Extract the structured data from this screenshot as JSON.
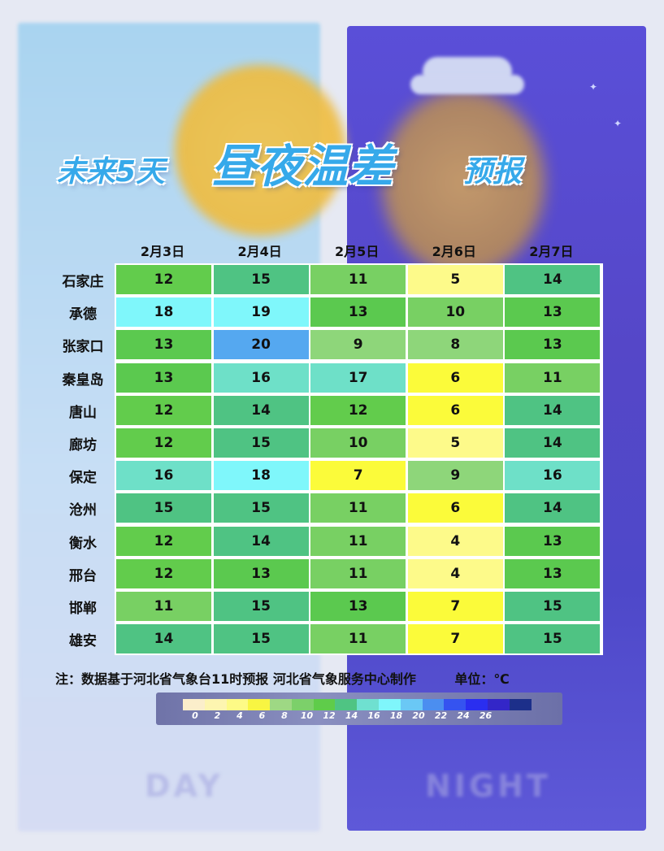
{
  "title": {
    "part1": "未来5天",
    "part2": "昼夜温差",
    "part3": "预报"
  },
  "watermarks": {
    "day": "DAY",
    "night": "NIGHT"
  },
  "note": "注：数据基于河北省气象台11时预报  河北省气象服务中心制作",
  "unit_text": "单位：℃",
  "chart_data": {
    "type": "heatmap",
    "columns": [
      "2月3日",
      "2月4日",
      "2月5日",
      "2月6日",
      "2月7日"
    ],
    "rows": [
      "石家庄",
      "承德",
      "张家口",
      "秦皇岛",
      "唐山",
      "廊坊",
      "保定",
      "沧州",
      "衡水",
      "邢台",
      "邯郸",
      "雄安"
    ],
    "values": [
      [
        12,
        15,
        11,
        5,
        14
      ],
      [
        18,
        19,
        13,
        10,
        13
      ],
      [
        13,
        20,
        9,
        8,
        13
      ],
      [
        13,
        16,
        17,
        6,
        11
      ],
      [
        12,
        14,
        12,
        6,
        14
      ],
      [
        12,
        15,
        10,
        5,
        14
      ],
      [
        16,
        18,
        7,
        9,
        16
      ],
      [
        15,
        15,
        11,
        6,
        14
      ],
      [
        12,
        14,
        11,
        4,
        13
      ],
      [
        12,
        13,
        11,
        4,
        13
      ],
      [
        11,
        15,
        13,
        7,
        15
      ],
      [
        14,
        15,
        11,
        7,
        15
      ]
    ],
    "legend": {
      "labels": [
        "0",
        "2",
        "4",
        "6",
        "8",
        "10",
        "12",
        "14",
        "16",
        "18",
        "20",
        "22",
        "24",
        "26"
      ],
      "colors": [
        "#fbeecb",
        "#fdf5b0",
        "#fdfa86",
        "#f8f542",
        "#9ed884",
        "#7cd06a",
        "#5fcc4a",
        "#4fc483",
        "#6fe0d0",
        "#7ff6fb",
        "#6ac8f5",
        "#4b8ef0",
        "#3553f0",
        "#2a2ef0",
        "#3326c8",
        "#1c2f8a"
      ]
    },
    "cell_color_scale": [
      {
        "max": 5,
        "color": "#fdfa8a"
      },
      {
        "max": 7,
        "color": "#fbfb3a"
      },
      {
        "max": 9,
        "color": "#8ed67a"
      },
      {
        "max": 11,
        "color": "#78d063"
      },
      {
        "max": 12,
        "color": "#62cc4c"
      },
      {
        "max": 13,
        "color": "#5bc94f"
      },
      {
        "max": 15,
        "color": "#4fc383"
      },
      {
        "max": 17,
        "color": "#6ee0c8"
      },
      {
        "max": 19,
        "color": "#7ff7fb"
      },
      {
        "max": 99,
        "color": "#55a8f0"
      }
    ]
  }
}
